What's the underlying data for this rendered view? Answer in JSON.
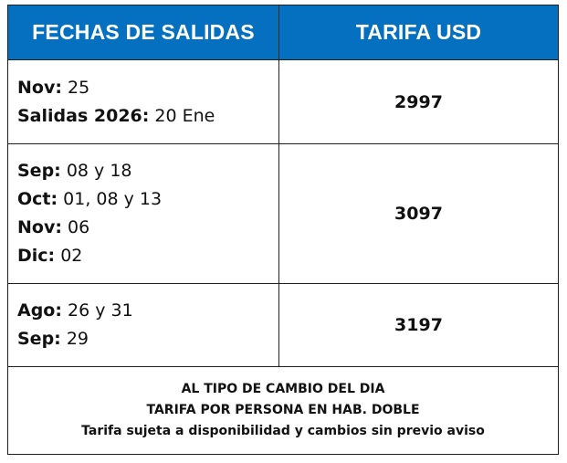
{
  "header": {
    "col_dates": "FECHAS DE SALIDAS",
    "col_rate": "TARIFA USD"
  },
  "rows": [
    {
      "lines": [
        {
          "label": "Nov:",
          "value": "25"
        },
        {
          "label": "Salidas 2026:",
          "value": "20 Ene"
        }
      ],
      "price": "2997"
    },
    {
      "lines": [
        {
          "label": "Sep:",
          "value": "08 y 18"
        },
        {
          "label": "Oct:",
          "value": "01, 08 y 13"
        },
        {
          "label": "Nov:",
          "value": "06"
        },
        {
          "label": "Dic:",
          "value": "02"
        }
      ],
      "price": "3097"
    },
    {
      "lines": [
        {
          "label": "Ago:",
          "value": "26 y 31"
        },
        {
          "label": "Sep:",
          "value": "29"
        }
      ],
      "price": "3197"
    }
  ],
  "footer": {
    "line1": "AL TIPO DE CAMBIO DEL DIA",
    "line2": "TARIFA POR PERSONA EN HAB. DOBLE",
    "line3": "Tarifa sujeta a disponibilidad y cambios sin previo aviso"
  },
  "colors": {
    "header_bg": "#0670c0",
    "header_text": "#ffffff",
    "border": "#1f1f1f"
  }
}
